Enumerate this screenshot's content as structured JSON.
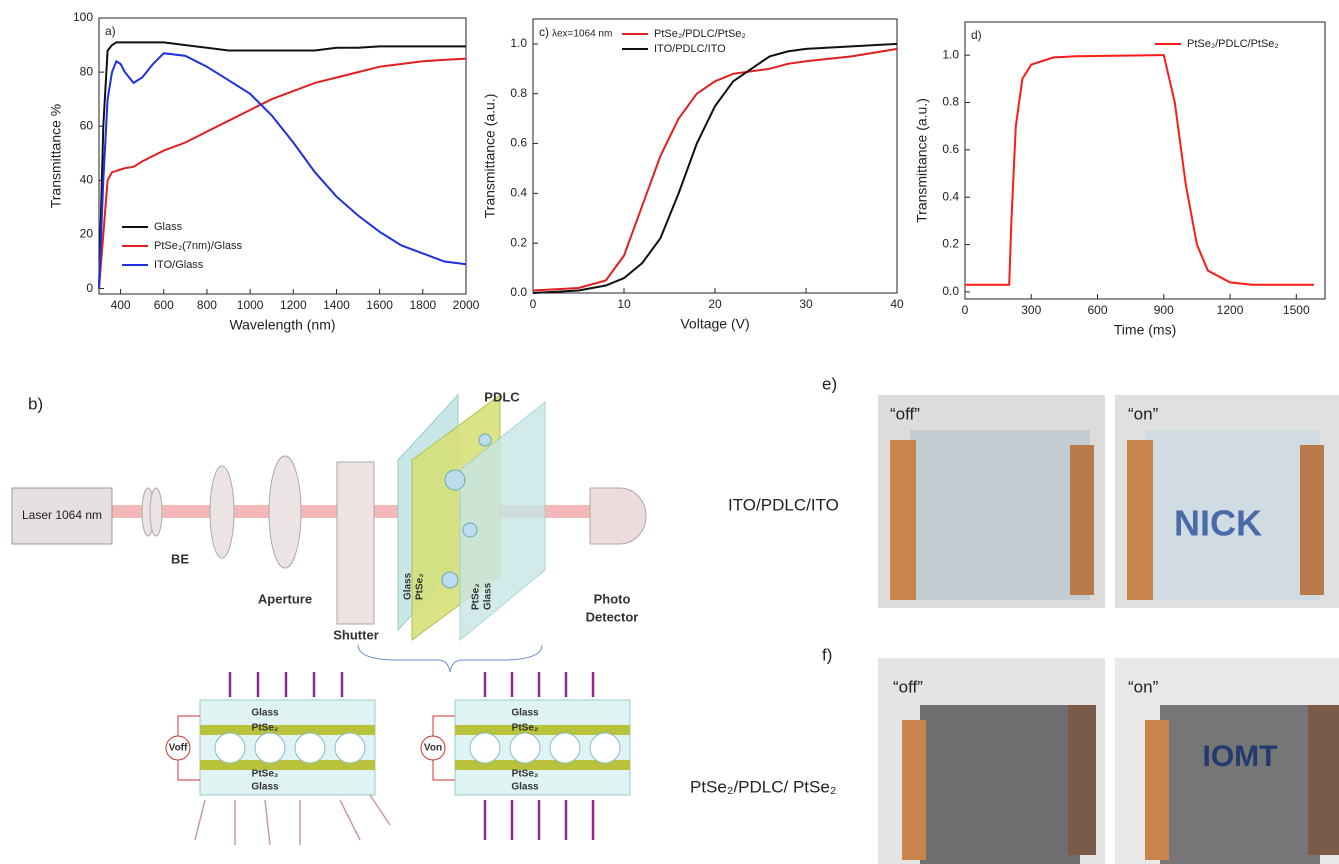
{
  "chart_data": [
    {
      "type": "line",
      "panel": "a)",
      "x_label": "Wavelength (nm)",
      "y_label": "Transmittance %",
      "x": [
        300,
        320,
        340,
        360,
        380,
        400,
        420,
        460,
        500,
        550,
        600,
        700,
        800,
        900,
        1000,
        1100,
        1200,
        1300,
        1400,
        1500,
        1600,
        1700,
        1800,
        1900,
        2000
      ],
      "series": [
        {
          "name": "Glass",
          "color": "#111111",
          "values": [
            0,
            60,
            88,
            90,
            91,
            91,
            91,
            91,
            91,
            91,
            91,
            90,
            89,
            88,
            88,
            88,
            88,
            88,
            89,
            89,
            89.5,
            89.5,
            89.5,
            89.5,
            89.5
          ]
        },
        {
          "name": "PtSe₂(7nm)/Glass",
          "color": "#e02020",
          "values": [
            0,
            20,
            40,
            43,
            43.5,
            44,
            44.5,
            45,
            47,
            49,
            51,
            54,
            58,
            62,
            66,
            70,
            73,
            76,
            78,
            80,
            82,
            83,
            84,
            84.5,
            85
          ]
        },
        {
          "name": "ITO/Glass",
          "color": "#1f2fe0",
          "values": [
            0,
            40,
            70,
            80,
            84,
            83,
            80,
            76,
            78,
            83,
            87,
            86,
            82,
            77,
            72,
            64,
            54,
            43,
            34,
            27,
            21,
            16,
            13,
            10,
            9
          ]
        }
      ],
      "xlim": [
        300,
        2000
      ],
      "ylim": [
        -2,
        100
      ],
      "xticks": [
        400,
        600,
        800,
        1000,
        1200,
        1400,
        1600,
        1800,
        2000
      ],
      "yticks": [
        0,
        20,
        40,
        60,
        80,
        100
      ],
      "legend": "lower left"
    },
    {
      "type": "line",
      "panel": "c)",
      "annotation": "λex=1064 nm",
      "x_label": "Voltage (V)",
      "y_label": "Transmittance (a.u.)",
      "x": [
        0,
        5,
        8,
        10,
        12,
        14,
        16,
        18,
        20,
        22,
        24,
        26,
        28,
        30,
        35,
        40
      ],
      "series": [
        {
          "name": "PtSe₂/PDLC/PtSe₂",
          "color": "#e02020",
          "values": [
            0.01,
            0.02,
            0.05,
            0.15,
            0.35,
            0.55,
            0.7,
            0.8,
            0.85,
            0.88,
            0.89,
            0.9,
            0.92,
            0.93,
            0.95,
            0.98
          ]
        },
        {
          "name": "ITO/PDLC/ITO",
          "color": "#111111",
          "values": [
            0,
            0.01,
            0.03,
            0.06,
            0.12,
            0.22,
            0.4,
            0.6,
            0.75,
            0.85,
            0.9,
            0.95,
            0.97,
            0.98,
            0.99,
            1.0
          ]
        }
      ],
      "xlim": [
        0,
        40
      ],
      "ylim": [
        0,
        1.1
      ],
      "xticks": [
        0,
        10,
        20,
        30,
        40
      ],
      "yticks": [
        {
          "value": 0,
          "label": "0.0"
        },
        0.2,
        0.4,
        0.6,
        0.8,
        {
          "value": 1,
          "label": "1.0"
        }
      ],
      "legend": "upper center"
    },
    {
      "type": "line",
      "panel": "d)",
      "x_label": "Time (ms)",
      "y_label": "Transmittance (a.u.)",
      "x": [
        0,
        200,
        210,
        230,
        260,
        300,
        400,
        500,
        880,
        900,
        950,
        1000,
        1050,
        1100,
        1200,
        1300,
        1580
      ],
      "series": [
        {
          "name": "PtSe₂/PDLC/PtSe₂",
          "color": "#ff1a1a",
          "values": [
            0.03,
            0.03,
            0.3,
            0.7,
            0.9,
            0.96,
            0.99,
            0.995,
            1.0,
            1.0,
            0.8,
            0.45,
            0.2,
            0.09,
            0.04,
            0.03,
            0.03
          ]
        }
      ],
      "xlim": [
        0,
        1630
      ],
      "ylim": [
        -0.03,
        1.14
      ],
      "xticks": [
        0,
        300,
        600,
        900,
        1200,
        1500
      ],
      "yticks": [
        {
          "value": 0,
          "label": "0.0"
        },
        0.2,
        0.4,
        0.6,
        0.8,
        {
          "value": 1,
          "label": "1.0"
        }
      ],
      "legend": "upper right"
    }
  ],
  "diagram": {
    "panel": "b)",
    "laser": "Laser 1064 nm",
    "beam_expander": "BE",
    "aperture": "Aperture",
    "shutter": "Shutter",
    "pdlc": "PDLC",
    "glass": "Glass",
    "ptse2": "PtSe₂",
    "detector_line1": "Photo",
    "detector_line2": "Detector",
    "v_off": "Voff",
    "v_on": "Von"
  },
  "photos": {
    "e": {
      "panel": "e)",
      "sample": "ITO/PDLC/ITO",
      "off": "“off”",
      "on": "“on”",
      "word": "NICK"
    },
    "f": {
      "panel": "f)",
      "sample": "PtSe₂/PDLC/ PtSe₂",
      "off": "“off”",
      "on": "“on”",
      "word": "IOMT"
    }
  }
}
